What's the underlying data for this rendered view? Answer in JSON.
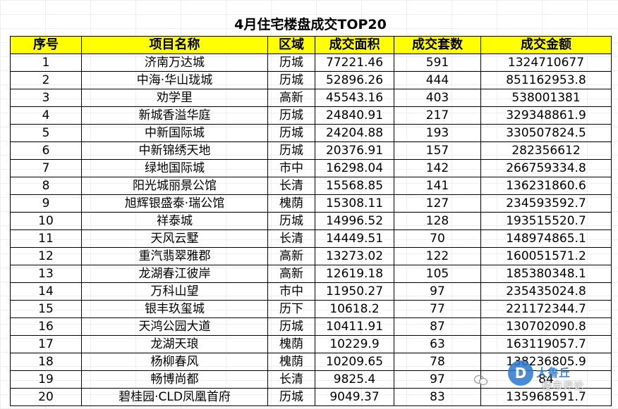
{
  "title": "4月住宅楼盘成交TOP20",
  "headers": {
    "rank": "序号",
    "name": "项目名称",
    "district": "区域",
    "area": "成交面积",
    "units": "成交套数",
    "amount": "成交金额"
  },
  "rows": [
    {
      "rank": "1",
      "name": "济南万达城",
      "district": "历城",
      "area": "77221.46",
      "units": "591",
      "amount": "1324710677"
    },
    {
      "rank": "2",
      "name": "中海·华山珑城",
      "district": "历城",
      "area": "52896.26",
      "units": "444",
      "amount": "851162953.8"
    },
    {
      "rank": "3",
      "name": "劝学里",
      "district": "高新",
      "area": "45543.16",
      "units": "403",
      "amount": "538001381"
    },
    {
      "rank": "4",
      "name": "新城香溢华庭",
      "district": "历城",
      "area": "24840.91",
      "units": "217",
      "amount": "329348861.9"
    },
    {
      "rank": "5",
      "name": "中新国际城",
      "district": "历城",
      "area": "24204.88",
      "units": "193",
      "amount": "330507824.5"
    },
    {
      "rank": "6",
      "name": "中新锦绣天地",
      "district": "历城",
      "area": "20376.91",
      "units": "157",
      "amount": "282356612"
    },
    {
      "rank": "7",
      "name": "绿地国际城",
      "district": "市中",
      "area": "16298.04",
      "units": "142",
      "amount": "266759334.8"
    },
    {
      "rank": "8",
      "name": "阳光城丽景公馆",
      "district": "长清",
      "area": "15568.85",
      "units": "141",
      "amount": "136231860.6"
    },
    {
      "rank": "9",
      "name": "旭辉银盛泰·瑞公馆",
      "district": "槐荫",
      "area": "15308.11",
      "units": "127",
      "amount": "234593592.7"
    },
    {
      "rank": "10",
      "name": "祥泰城",
      "district": "历城",
      "area": "14996.52",
      "units": "128",
      "amount": "193515520.7"
    },
    {
      "rank": "11",
      "name": "天风云墅",
      "district": "长清",
      "area": "14449.51",
      "units": "70",
      "amount": "148974865.1"
    },
    {
      "rank": "12",
      "name": "重汽翡翠雅郡",
      "district": "高新",
      "area": "13273.02",
      "units": "122",
      "amount": "160051571.2"
    },
    {
      "rank": "13",
      "name": "龙湖春江彼岸",
      "district": "高新",
      "area": "12619.18",
      "units": "105",
      "amount": "185380348.1"
    },
    {
      "rank": "14",
      "name": "万科山望",
      "district": "市中",
      "area": "11950.27",
      "units": "97",
      "amount": "235435024.8"
    },
    {
      "rank": "15",
      "name": "银丰玖玺城",
      "district": "历下",
      "area": "10618.2",
      "units": "77",
      "amount": "221172344.7"
    },
    {
      "rank": "16",
      "name": "天鸿公园大道",
      "district": "历城",
      "area": "10411.91",
      "units": "87",
      "amount": "130702090.8"
    },
    {
      "rank": "17",
      "name": "龙湖天琅",
      "district": "槐荫",
      "area": "10229.9",
      "units": "63",
      "amount": "163119057.7"
    },
    {
      "rank": "18",
      "name": "杨柳春风",
      "district": "槐荫",
      "area": "10209.65",
      "units": "78",
      "amount": "138236805.9"
    },
    {
      "rank": "19",
      "name": "畅博尚都",
      "district": "长清",
      "area": "9825.4",
      "units": "97",
      "amount": "84"
    },
    {
      "rank": "20",
      "name": "碧桂园·CLD凤凰首府",
      "district": "历城",
      "area": "9049.37",
      "units": "83",
      "amount": "135968591.7"
    }
  ],
  "watermark": {
    "brand": "大鲁丘",
    "badge": "D",
    "text": "楼市评论"
  }
}
